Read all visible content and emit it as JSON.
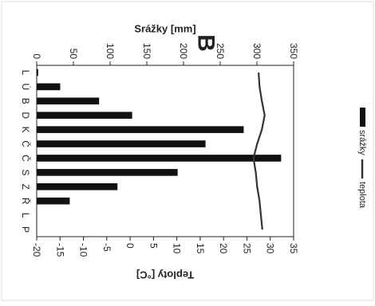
{
  "colors": {
    "bar": "#111111",
    "line": "#333333",
    "frame": "#222222"
  },
  "chart_data": {
    "type": "bar",
    "panel_label": "B",
    "orientation": "rotated-90",
    "categories": [
      "L",
      "Ú",
      "B",
      "D",
      "K",
      "Č",
      "Č",
      "S",
      "Z",
      "Ř",
      "L",
      "P"
    ],
    "series": [
      {
        "name": "srážky",
        "type": "bar",
        "axis": "left",
        "values": [
          2,
          32,
          85,
          130,
          282,
          230,
          333,
          192,
          110,
          45,
          0,
          0
        ]
      },
      {
        "name": "teplota",
        "type": "line",
        "axis": "right",
        "values": [
          27.5,
          27.7,
          28.2,
          28.8,
          28.2,
          27.2,
          26.4,
          26.9,
          27.2,
          27.7,
          28.0,
          28.3
        ]
      }
    ],
    "y_left": {
      "label": "Srážky [mm]",
      "range": [
        0,
        350
      ],
      "ticks": [
        0,
        50,
        100,
        150,
        200,
        250,
        300,
        350
      ]
    },
    "y_right": {
      "label": "Teploty [°C]",
      "range": [
        -20,
        35
      ],
      "ticks": [
        -20,
        -15,
        -10,
        -5,
        0,
        5,
        10,
        15,
        20,
        25,
        30,
        35
      ]
    },
    "legend": {
      "position": "top",
      "items": [
        "srážky",
        "teplota"
      ]
    },
    "grid": false
  }
}
